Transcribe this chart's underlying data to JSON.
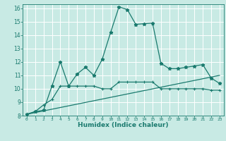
{
  "xlabel": "Humidex (Indice chaleur)",
  "background_color": "#c8eae4",
  "line_color": "#1a7a6e",
  "grid_color": "#ffffff",
  "xlim": [
    -0.5,
    23.5
  ],
  "ylim": [
    8,
    16.3
  ],
  "xticks": [
    0,
    1,
    2,
    3,
    4,
    5,
    6,
    7,
    8,
    9,
    10,
    11,
    12,
    13,
    14,
    15,
    16,
    17,
    18,
    19,
    20,
    21,
    22,
    23
  ],
  "yticks": [
    8,
    9,
    10,
    11,
    12,
    13,
    14,
    15,
    16
  ],
  "series1_x": [
    0,
    1,
    2,
    3,
    4,
    5,
    6,
    7,
    8,
    9,
    10,
    11,
    12,
    13,
    14,
    15,
    16,
    17,
    18,
    19,
    20,
    21,
    22,
    23
  ],
  "series1_y": [
    8.1,
    8.3,
    8.4,
    10.2,
    12.0,
    10.2,
    11.1,
    11.6,
    11.0,
    12.2,
    14.2,
    16.1,
    15.9,
    14.8,
    14.85,
    14.9,
    11.9,
    11.5,
    11.5,
    11.6,
    11.7,
    11.8,
    10.8,
    10.4
  ],
  "series2_x": [
    0,
    1,
    2,
    3,
    4,
    5,
    6,
    7,
    8,
    9,
    10,
    11,
    12,
    13,
    14,
    15,
    16,
    17,
    18,
    19,
    20,
    21,
    22,
    23
  ],
  "series2_y": [
    8.1,
    8.3,
    8.8,
    9.2,
    10.2,
    10.2,
    10.2,
    10.2,
    10.2,
    10.0,
    10.0,
    10.5,
    10.5,
    10.5,
    10.5,
    10.5,
    10.0,
    10.0,
    10.0,
    10.0,
    10.0,
    10.0,
    9.9,
    9.9
  ],
  "series3_x": [
    0,
    23
  ],
  "series3_y": [
    8.1,
    11.0
  ]
}
